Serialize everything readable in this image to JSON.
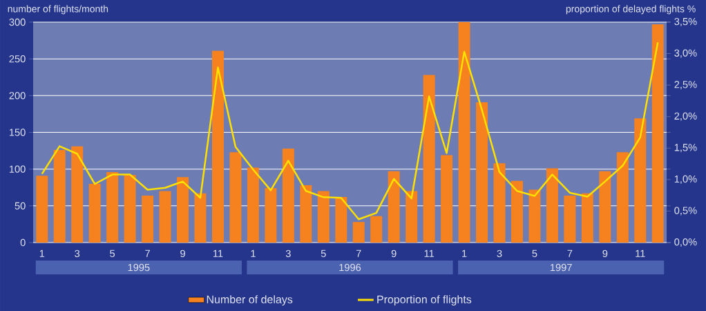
{
  "chart_data": {
    "type": "bar",
    "ylabel": "number of flights/month",
    "y2label": "proportion of delayed flights %",
    "categories": [
      "1",
      null,
      "3",
      null,
      "5",
      null,
      "7",
      null,
      "9",
      null,
      "11",
      null,
      "1",
      null,
      "3",
      null,
      "5",
      null,
      "7",
      null,
      "9",
      null,
      "11",
      null,
      "1",
      null,
      "3",
      null,
      "5",
      null,
      "7",
      null,
      "9",
      null,
      "11",
      null
    ],
    "series": [
      {
        "name": "Number of delays",
        "color": "#f5821f",
        "values": [
          91,
          126,
          131,
          80,
          96,
          92,
          64,
          70,
          89,
          67,
          261,
          123,
          102,
          74,
          128,
          78,
          70,
          62,
          28,
          36,
          97,
          70,
          228,
          119,
          300,
          191,
          108,
          84,
          72,
          101,
          64,
          67,
          97,
          123,
          169,
          297
        ]
      },
      {
        "name": "Proportion of flights",
        "type": "line",
        "axis": "y2",
        "color": "#ffe000",
        "values": [
          1.09,
          1.53,
          1.41,
          0.93,
          1.08,
          1.08,
          0.84,
          0.87,
          0.97,
          0.71,
          2.78,
          1.52,
          1.16,
          0.83,
          1.3,
          0.82,
          0.72,
          0.71,
          0.37,
          0.47,
          1.01,
          0.7,
          2.32,
          1.42,
          3.03,
          2.11,
          1.12,
          0.82,
          0.74,
          1.08,
          0.79,
          0.73,
          0.97,
          1.22,
          1.67,
          3.18
        ]
      }
    ],
    "ylim": [
      0,
      300
    ],
    "yticks": [
      0,
      50,
      100,
      150,
      200,
      250,
      300
    ],
    "y2lim": [
      0,
      3.5
    ],
    "y2ticks": [
      {
        "value": 0,
        "label": "0,0%"
      },
      {
        "value": 0.5,
        "label": "0,5%"
      },
      {
        "value": 1,
        "label": "1,0%"
      },
      {
        "value": 1.5,
        "label": "1,5%"
      },
      {
        "value": 2,
        "label": "2,0%"
      },
      {
        "value": 2.5,
        "label": "2,5%"
      },
      {
        "value": 3,
        "label": "3,0%"
      },
      {
        "value": 3.5,
        "label": "3,5%"
      }
    ],
    "annotations": [
      "1995",
      "1996",
      "1997"
    ],
    "grid": "y",
    "legend": "bottom"
  }
}
